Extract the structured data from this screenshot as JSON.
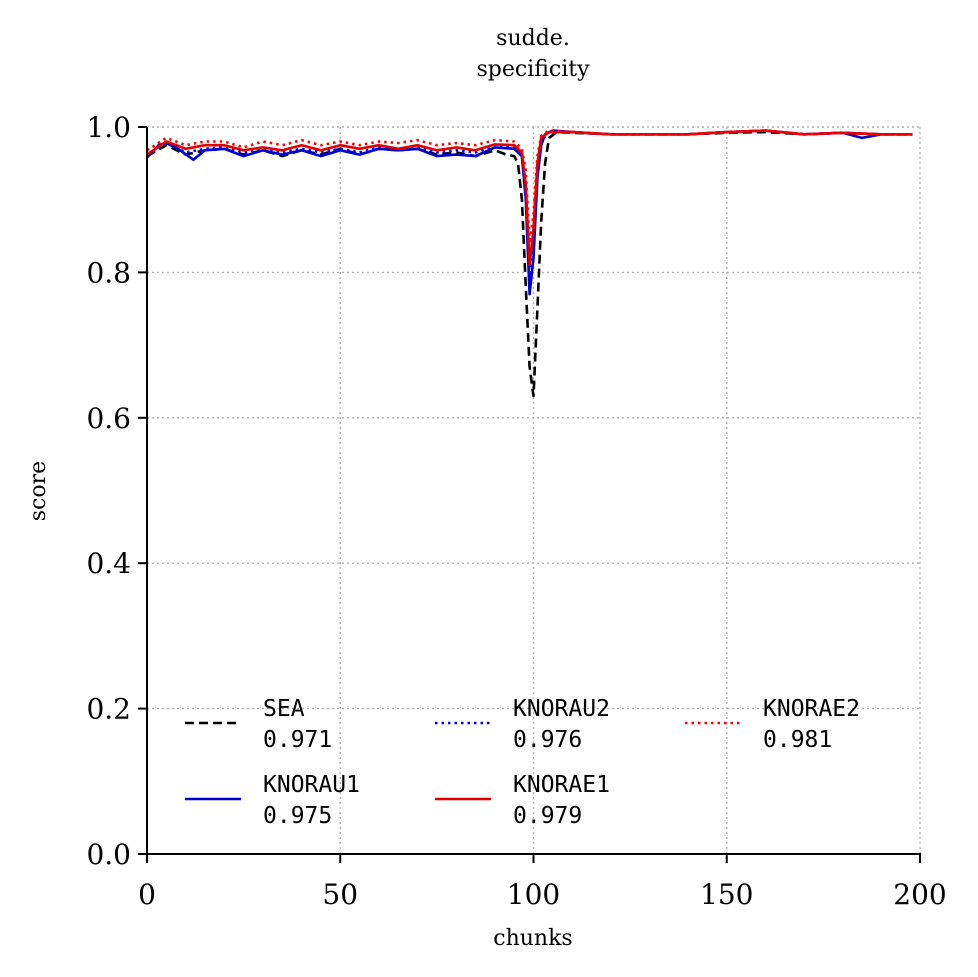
{
  "chart_data": {
    "type": "line",
    "title_lines": [
      "sudde.",
      "specificity"
    ],
    "xlabel": "chunks",
    "ylabel": "score",
    "xlim": [
      0,
      200
    ],
    "ylim": [
      0.0,
      1.0
    ],
    "xticks": [
      "0",
      "50",
      "100",
      "150",
      "200"
    ],
    "yticks": [
      "0.0",
      "0.2",
      "0.4",
      "0.6",
      "0.8",
      "1.0"
    ],
    "grid": true,
    "legend_placement": "lower-center",
    "series": [
      {
        "name": "SEA",
        "score": "0.971",
        "color": "#000000",
        "style": "dashed",
        "points": [
          [
            0,
            0.96
          ],
          [
            5,
            0.975
          ],
          [
            10,
            0.962
          ],
          [
            15,
            0.968
          ],
          [
            20,
            0.97
          ],
          [
            25,
            0.962
          ],
          [
            30,
            0.968
          ],
          [
            35,
            0.96
          ],
          [
            40,
            0.968
          ],
          [
            45,
            0.962
          ],
          [
            50,
            0.97
          ],
          [
            55,
            0.962
          ],
          [
            60,
            0.97
          ],
          [
            65,
            0.968
          ],
          [
            70,
            0.97
          ],
          [
            75,
            0.962
          ],
          [
            80,
            0.965
          ],
          [
            85,
            0.96
          ],
          [
            90,
            0.968
          ],
          [
            93,
            0.962
          ],
          [
            95,
            0.96
          ],
          [
            96,
            0.95
          ],
          [
            97,
            0.9
          ],
          [
            98,
            0.78
          ],
          [
            99,
            0.67
          ],
          [
            100,
            0.63
          ],
          [
            101,
            0.75
          ],
          [
            102,
            0.87
          ],
          [
            103,
            0.95
          ],
          [
            104,
            0.985
          ],
          [
            106,
            0.993
          ],
          [
            110,
            0.992
          ],
          [
            120,
            0.99
          ],
          [
            130,
            0.99
          ],
          [
            140,
            0.99
          ],
          [
            150,
            0.992
          ],
          [
            160,
            0.993
          ],
          [
            170,
            0.99
          ],
          [
            180,
            0.992
          ],
          [
            190,
            0.99
          ],
          [
            198,
            0.99
          ]
        ]
      },
      {
        "name": "KNORAU1",
        "score": "0.975",
        "color": "#0000cc",
        "style": "solid",
        "points": [
          [
            0,
            0.958
          ],
          [
            3,
            0.975
          ],
          [
            5,
            0.978
          ],
          [
            8,
            0.97
          ],
          [
            12,
            0.955
          ],
          [
            15,
            0.968
          ],
          [
            20,
            0.97
          ],
          [
            25,
            0.96
          ],
          [
            30,
            0.968
          ],
          [
            35,
            0.962
          ],
          [
            40,
            0.968
          ],
          [
            45,
            0.96
          ],
          [
            50,
            0.968
          ],
          [
            55,
            0.962
          ],
          [
            60,
            0.97
          ],
          [
            65,
            0.968
          ],
          [
            70,
            0.97
          ],
          [
            75,
            0.96
          ],
          [
            80,
            0.962
          ],
          [
            85,
            0.96
          ],
          [
            90,
            0.972
          ],
          [
            95,
            0.97
          ],
          [
            97,
            0.96
          ],
          [
            98,
            0.9
          ],
          [
            99,
            0.77
          ],
          [
            100,
            0.82
          ],
          [
            101,
            0.93
          ],
          [
            102,
            0.975
          ],
          [
            103,
            0.99
          ],
          [
            105,
            0.995
          ],
          [
            110,
            0.993
          ],
          [
            120,
            0.99
          ],
          [
            130,
            0.99
          ],
          [
            140,
            0.99
          ],
          [
            150,
            0.993
          ],
          [
            160,
            0.995
          ],
          [
            170,
            0.99
          ],
          [
            180,
            0.992
          ],
          [
            185,
            0.985
          ],
          [
            190,
            0.99
          ],
          [
            198,
            0.99
          ]
        ]
      },
      {
        "name": "KNORAU2",
        "score": "0.976",
        "color": "#0000ff",
        "style": "dotted",
        "points": [
          [
            0,
            0.962
          ],
          [
            5,
            0.978
          ],
          [
            10,
            0.965
          ],
          [
            15,
            0.97
          ],
          [
            20,
            0.972
          ],
          [
            25,
            0.965
          ],
          [
            30,
            0.97
          ],
          [
            35,
            0.965
          ],
          [
            40,
            0.97
          ],
          [
            45,
            0.965
          ],
          [
            50,
            0.97
          ],
          [
            55,
            0.965
          ],
          [
            60,
            0.972
          ],
          [
            65,
            0.97
          ],
          [
            70,
            0.972
          ],
          [
            75,
            0.965
          ],
          [
            80,
            0.968
          ],
          [
            85,
            0.965
          ],
          [
            90,
            0.974
          ],
          [
            95,
            0.972
          ],
          [
            97,
            0.96
          ],
          [
            98,
            0.91
          ],
          [
            99,
            0.79
          ],
          [
            100,
            0.84
          ],
          [
            101,
            0.94
          ],
          [
            102,
            0.98
          ],
          [
            104,
            0.993
          ],
          [
            110,
            0.993
          ],
          [
            120,
            0.99
          ],
          [
            130,
            0.99
          ],
          [
            140,
            0.99
          ],
          [
            150,
            0.993
          ],
          [
            160,
            0.995
          ],
          [
            170,
            0.99
          ],
          [
            180,
            0.992
          ],
          [
            190,
            0.99
          ],
          [
            198,
            0.99
          ]
        ]
      },
      {
        "name": "KNORAE1",
        "score": "0.979",
        "color": "#e00000",
        "style": "solid",
        "points": [
          [
            0,
            0.962
          ],
          [
            5,
            0.98
          ],
          [
            10,
            0.97
          ],
          [
            15,
            0.975
          ],
          [
            20,
            0.975
          ],
          [
            25,
            0.968
          ],
          [
            30,
            0.972
          ],
          [
            35,
            0.968
          ],
          [
            40,
            0.975
          ],
          [
            45,
            0.968
          ],
          [
            50,
            0.975
          ],
          [
            55,
            0.97
          ],
          [
            60,
            0.975
          ],
          [
            65,
            0.97
          ],
          [
            70,
            0.975
          ],
          [
            75,
            0.968
          ],
          [
            80,
            0.972
          ],
          [
            85,
            0.968
          ],
          [
            90,
            0.976
          ],
          [
            95,
            0.975
          ],
          [
            97,
            0.965
          ],
          [
            98,
            0.92
          ],
          [
            99,
            0.81
          ],
          [
            100,
            0.86
          ],
          [
            101,
            0.95
          ],
          [
            102,
            0.985
          ],
          [
            104,
            0.993
          ],
          [
            110,
            0.993
          ],
          [
            120,
            0.99
          ],
          [
            130,
            0.99
          ],
          [
            140,
            0.99
          ],
          [
            150,
            0.993
          ],
          [
            160,
            0.995
          ],
          [
            170,
            0.99
          ],
          [
            180,
            0.992
          ],
          [
            190,
            0.99
          ],
          [
            198,
            0.99
          ]
        ]
      },
      {
        "name": "KNORAE2",
        "score": "0.981",
        "color": "#ff0000",
        "style": "dotted",
        "points": [
          [
            0,
            0.968
          ],
          [
            5,
            0.985
          ],
          [
            10,
            0.975
          ],
          [
            15,
            0.98
          ],
          [
            20,
            0.98
          ],
          [
            25,
            0.972
          ],
          [
            30,
            0.98
          ],
          [
            35,
            0.975
          ],
          [
            40,
            0.982
          ],
          [
            45,
            0.975
          ],
          [
            50,
            0.98
          ],
          [
            55,
            0.975
          ],
          [
            60,
            0.98
          ],
          [
            65,
            0.978
          ],
          [
            70,
            0.982
          ],
          [
            75,
            0.975
          ],
          [
            80,
            0.978
          ],
          [
            85,
            0.975
          ],
          [
            90,
            0.982
          ],
          [
            95,
            0.98
          ],
          [
            97,
            0.97
          ],
          [
            98,
            0.94
          ],
          [
            99,
            0.84
          ],
          [
            100,
            0.88
          ],
          [
            101,
            0.96
          ],
          [
            102,
            0.988
          ],
          [
            104,
            0.995
          ],
          [
            110,
            0.993
          ],
          [
            120,
            0.99
          ],
          [
            130,
            0.99
          ],
          [
            140,
            0.99
          ],
          [
            150,
            0.993
          ],
          [
            160,
            0.995
          ],
          [
            170,
            0.99
          ],
          [
            180,
            0.992
          ],
          [
            190,
            0.99
          ],
          [
            198,
            0.99
          ]
        ]
      }
    ]
  }
}
